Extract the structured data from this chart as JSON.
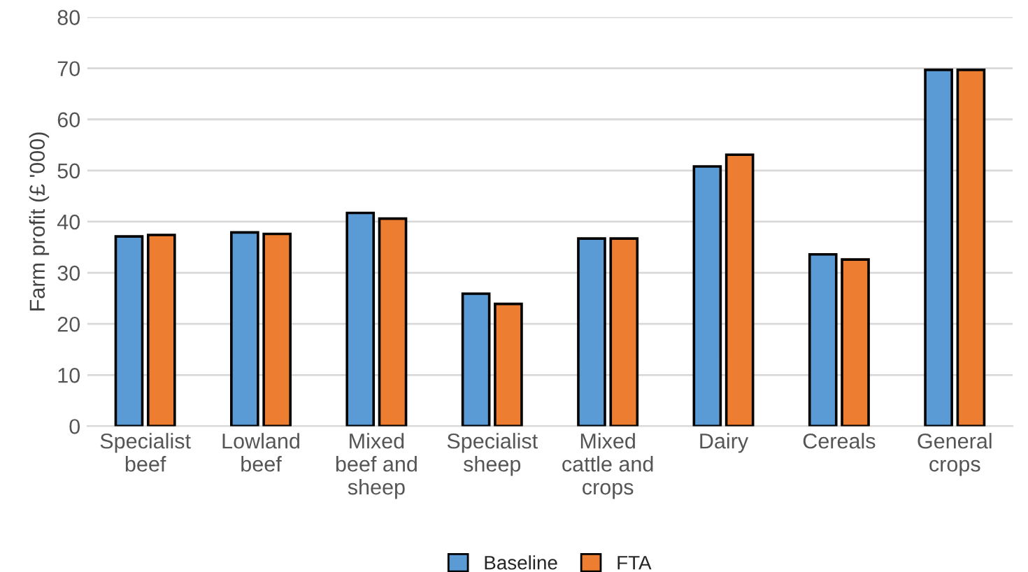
{
  "chart_data": {
    "type": "bar",
    "ylabel": "Farm profit (£ '000)",
    "categories": [
      "Specialist\nbeef",
      "Lowland\nbeef",
      "Mixed\nbeef and\nsheep",
      "Specialist\nsheep",
      "Mixed\ncattle and\ncrops",
      "Dairy",
      "Cereals",
      "General\ncrops"
    ],
    "series": [
      {
        "name": "Baseline",
        "color": "#5b9bd5",
        "values": [
          37.1,
          37.9,
          41.7,
          25.9,
          36.7,
          50.8,
          33.6,
          69.7
        ]
      },
      {
        "name": "FTA",
        "color": "#ed7d31",
        "values": [
          37.4,
          37.6,
          40.6,
          23.9,
          36.7,
          53.1,
          32.6,
          69.7
        ]
      }
    ],
    "ylim": [
      0,
      80
    ],
    "yticks": [
      0,
      10,
      20,
      30,
      40,
      50,
      60,
      70,
      80
    ],
    "grid": "y",
    "legend": "bottom"
  }
}
